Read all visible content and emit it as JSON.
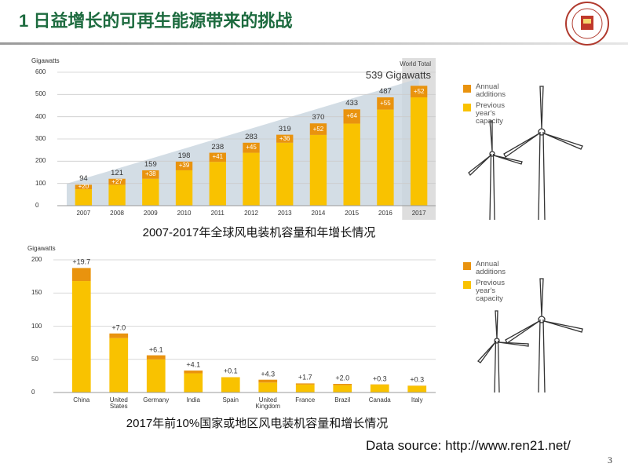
{
  "header": {
    "title": "1 日益增长的可再生能源带来的挑战"
  },
  "chart_data": [
    {
      "type": "bar",
      "stacked": true,
      "y_label": "Gigawatts",
      "categories": [
        "2007",
        "2008",
        "2009",
        "2010",
        "2011",
        "2012",
        "2013",
        "2014",
        "2015",
        "2016",
        "2017"
      ],
      "series": [
        {
          "name": "Previous year's capacity",
          "color": "#f9c200",
          "values": [
            74,
            94,
            121,
            159,
            197,
            238,
            283,
            318,
            369,
            432,
            487
          ]
        },
        {
          "name": "Annual additions",
          "color": "#e9930e",
          "values": [
            20,
            27,
            38,
            39,
            41,
            45,
            36,
            52,
            64,
            55,
            52
          ],
          "value_labels": [
            "+20",
            "+27",
            "+38",
            "+39",
            "+41",
            "+45",
            "+36",
            "+52",
            "+64",
            "+55",
            "+52"
          ]
        }
      ],
      "totals": [
        94,
        121,
        159,
        198,
        238,
        283,
        319,
        370,
        433,
        487,
        null
      ],
      "annotation": {
        "title": "World Total",
        "label": "539 Gigawatts"
      },
      "ylim": [
        0,
        600
      ],
      "yticks": [
        0,
        100,
        200,
        300,
        400,
        500,
        600
      ],
      "grid": true,
      "legend": "right",
      "caption": "2007-2017年全球风电装机容量和年增长情况"
    },
    {
      "type": "bar",
      "stacked": true,
      "y_label": "Gigawatts",
      "categories": [
        "China",
        "United States",
        "Germany",
        "India",
        "Spain",
        "United Kingdom",
        "France",
        "Brazil",
        "Canada",
        "Italy"
      ],
      "series": [
        {
          "name": "Previous year's capacity",
          "color": "#f9c200",
          "values": [
            168,
            82,
            50,
            29,
            23,
            15,
            12,
            11,
            12,
            10
          ]
        },
        {
          "name": "Annual additions",
          "color": "#e9930e",
          "values": [
            19.7,
            7.0,
            6.1,
            4.1,
            0.1,
            4.3,
            1.7,
            2.0,
            0.3,
            0.3
          ],
          "value_labels": [
            "+19.7",
            "+7.0",
            "+6.1",
            "+4.1",
            "+0.1",
            "+4.3",
            "+1.7",
            "+2.0",
            "+0.3",
            "+0.3"
          ]
        }
      ],
      "ylim": [
        0,
        200
      ],
      "yticks": [
        0,
        50,
        100,
        150,
        200
      ],
      "grid": true,
      "legend": "right",
      "caption": "2017年前10%国家或地区风电装机容量和增长情况"
    }
  ],
  "data_source": "Data source: http://www.ren21.net/",
  "page_number": "3"
}
